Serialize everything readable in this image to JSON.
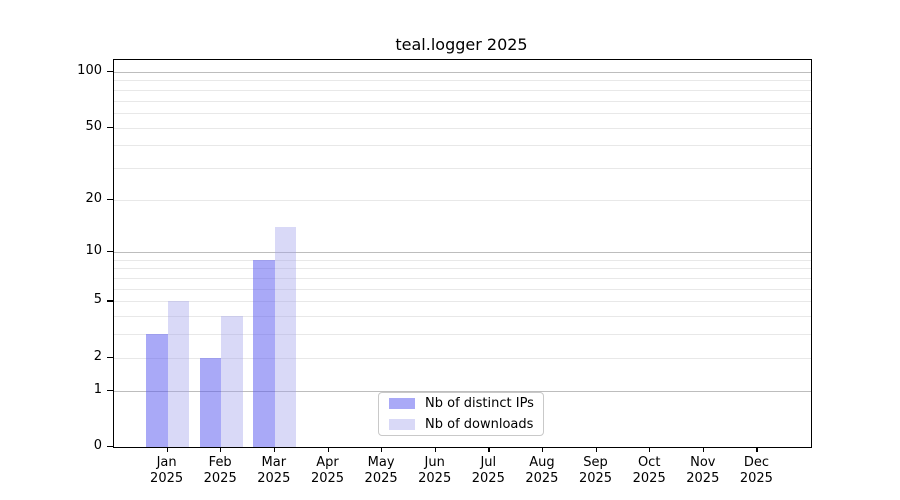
{
  "chart_data": {
    "type": "bar",
    "title": "teal.logger 2025",
    "x": {
      "months": [
        "Jan",
        "Feb",
        "Mar",
        "Apr",
        "May",
        "Jun",
        "Jul",
        "Aug",
        "Sep",
        "Oct",
        "Nov",
        "Dec"
      ],
      "year": "2025"
    },
    "series": [
      {
        "name": "Nb of distinct IPs",
        "color_hex": "#5a5af0",
        "alpha": 0.52,
        "values": [
          3,
          2,
          9,
          0,
          0,
          0,
          0,
          0,
          0,
          0,
          0,
          0
        ]
      },
      {
        "name": "Nb of downloads",
        "color_hex": "#a0a0eb",
        "alpha": 0.4,
        "values": [
          5,
          4,
          14,
          0,
          0,
          0,
          0,
          0,
          0,
          0,
          0,
          0
        ]
      }
    ],
    "y_axis": {
      "scale": "log1p",
      "ticks": [
        0,
        1,
        2,
        5,
        10,
        20,
        50,
        100
      ],
      "top_value": 116,
      "major_gridlines": [
        1,
        10,
        100
      ],
      "minor_gridlines": [
        2,
        3,
        4,
        5,
        6,
        7,
        8,
        9,
        20,
        30,
        40,
        50,
        60,
        70,
        80,
        90
      ]
    },
    "legend": {
      "position": "bottom-center"
    },
    "grid": "horizontal-only",
    "colors": {
      "major_grid": "#bdbdbd",
      "minor_grid": "#e8e8e8",
      "axis": "#000000",
      "text": "#000000",
      "background": "#ffffff"
    }
  }
}
